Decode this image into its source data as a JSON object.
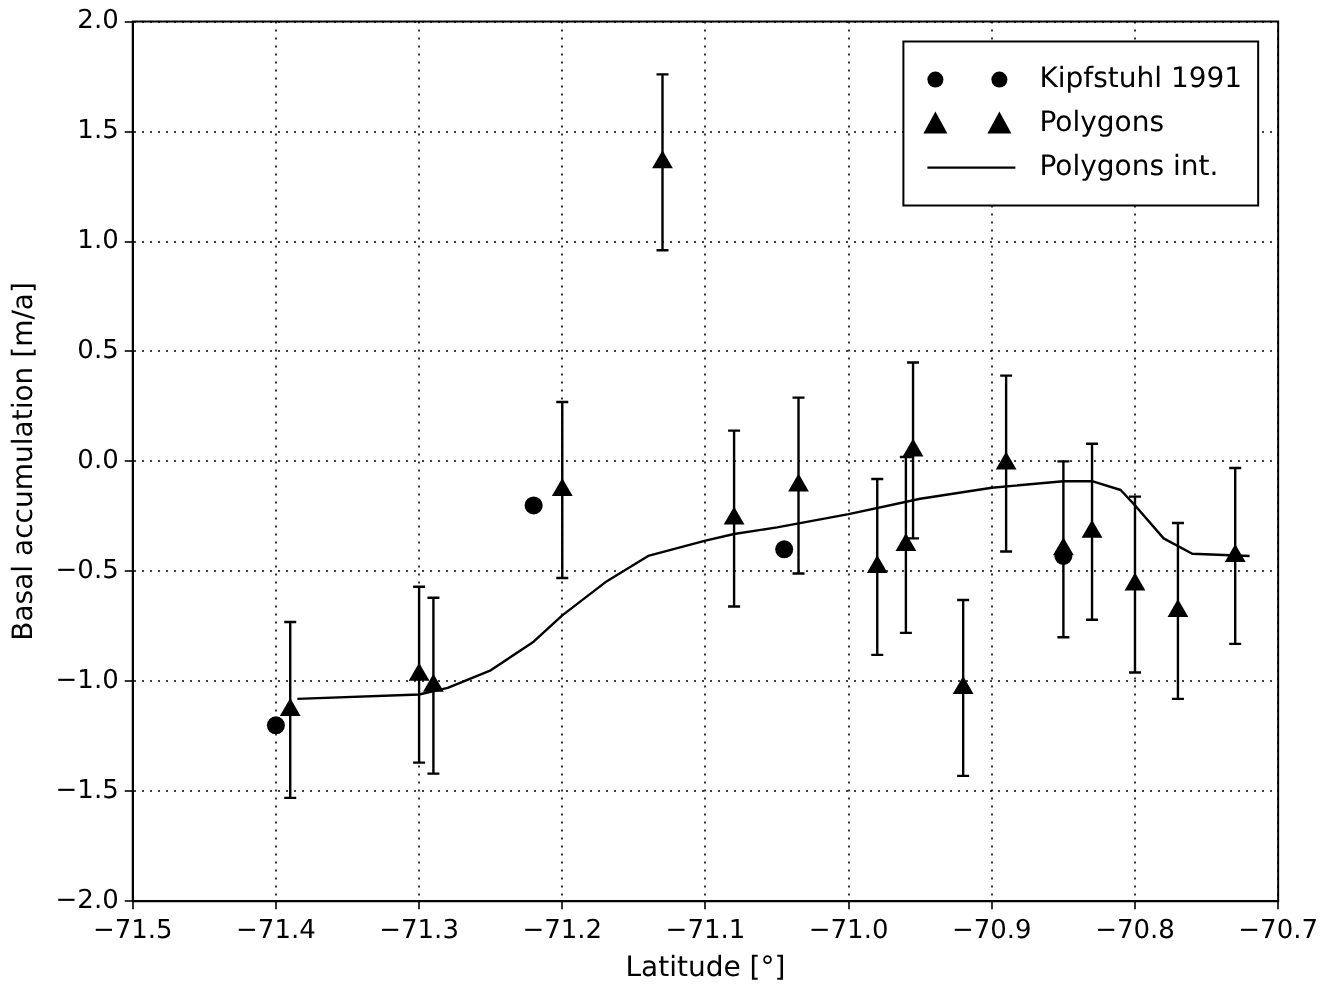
{
  "chart_data": {
    "type": "scatter",
    "xlabel": "Latitude [°]",
    "ylabel": "Basal accumulation [m/a]",
    "xlim": [
      -71.5,
      -70.7
    ],
    "xticks": [
      {
        "value": -71.5,
        "label": "−71.5"
      },
      {
        "value": -71.4,
        "label": "−71.4"
      },
      {
        "value": -71.3,
        "label": "−71.3"
      },
      {
        "value": -71.2,
        "label": "−71.2"
      },
      {
        "value": -71.1,
        "label": "−71.1"
      },
      {
        "value": -71.0,
        "label": "−71.0"
      },
      {
        "value": -70.9,
        "label": "−70.9"
      },
      {
        "value": -70.8,
        "label": "−70.8"
      },
      {
        "value": -70.7,
        "label": "−70.7"
      }
    ],
    "ylim": [
      -2.0,
      2.0
    ],
    "yticks": [
      {
        "value": -2.0,
        "label": "−2.0"
      },
      {
        "value": -1.5,
        "label": "−1.5"
      },
      {
        "value": -1.0,
        "label": "−1.0"
      },
      {
        "value": -0.5,
        "label": "−0.5"
      },
      {
        "value": 0,
        "label": "0.0"
      },
      {
        "value": 0.5,
        "label": "0.5"
      },
      {
        "value": 1.0,
        "label": "1.0"
      },
      {
        "value": 1.5,
        "label": "1.5"
      },
      {
        "value": 2.0,
        "label": "2.0"
      }
    ],
    "grid": true,
    "legend": "top right",
    "series": [
      {
        "name": "Kipfstuhl 1991",
        "marker": "circle",
        "color": "#000000",
        "x": [
          -71.4,
          -71.22,
          -71.045,
          -70.85
        ],
        "values": [
          -1.2,
          -0.2,
          -0.4,
          -0.43
        ]
      },
      {
        "name": "Polygons",
        "marker": "triangle",
        "color": "#000000",
        "x": [
          -71.39,
          -71.3,
          -71.29,
          -71.2,
          -71.13,
          -71.08,
          -71.035,
          -70.98,
          -70.96,
          -70.955,
          -70.92,
          -70.89,
          -70.85,
          -70.83,
          -70.8,
          -70.77,
          -70.73
        ],
        "values": [
          -1.13,
          -0.97,
          -1.02,
          -0.13,
          1.36,
          -0.26,
          -0.11,
          -0.48,
          -0.38,
          0.05,
          -1.03,
          -0.01,
          -0.4,
          -0.32,
          -0.56,
          -0.68,
          -0.43
        ],
        "errors": [
          0.4,
          0.4,
          0.4,
          0.4,
          0.4,
          0.4,
          0.4,
          0.4,
          0.4,
          0.4,
          0.4,
          0.4,
          0.4,
          0.4,
          0.4,
          0.4,
          0.4
        ]
      },
      {
        "name": "Polygons int.",
        "type": "line",
        "marker": "none",
        "line_style": "solid",
        "color": "#000000",
        "x": [
          -71.385,
          -71.3,
          -71.28,
          -71.25,
          -71.22,
          -71.2,
          -71.17,
          -71.14,
          -71.1,
          -71.08,
          -71.05,
          -71.0,
          -70.95,
          -70.9,
          -70.85,
          -70.83,
          -70.81,
          -70.8,
          -70.78,
          -70.76,
          -70.72
        ],
        "values": [
          -1.08,
          -1.06,
          -1.03,
          -0.95,
          -0.82,
          -0.7,
          -0.55,
          -0.43,
          -0.36,
          -0.33,
          -0.3,
          -0.24,
          -0.17,
          -0.12,
          -0.09,
          -0.09,
          -0.13,
          -0.2,
          -0.35,
          -0.42,
          -0.43
        ]
      }
    ]
  }
}
